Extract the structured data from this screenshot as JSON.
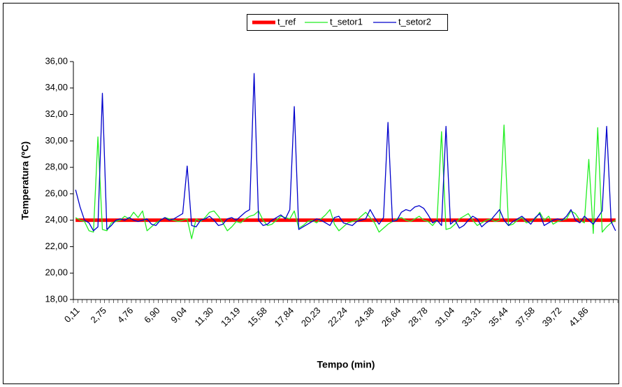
{
  "chart_data": {
    "type": "line",
    "y_label": "Temperatura (ºC)",
    "x_label": "Tempo (min)",
    "categories": [
      "0,11",
      null,
      null,
      null,
      null,
      null,
      "2,75",
      null,
      null,
      null,
      null,
      null,
      "4,76",
      null,
      null,
      null,
      null,
      null,
      "6,90",
      null,
      null,
      null,
      null,
      null,
      "9,04",
      null,
      null,
      null,
      null,
      null,
      "11,30",
      null,
      null,
      null,
      null,
      null,
      "13,19",
      null,
      null,
      null,
      null,
      null,
      "15,58",
      null,
      null,
      null,
      null,
      null,
      "17,84",
      null,
      null,
      null,
      null,
      null,
      "20,23",
      null,
      null,
      null,
      null,
      null,
      "22,24",
      null,
      null,
      null,
      null,
      null,
      "24,38",
      null,
      null,
      null,
      null,
      null,
      "26,64",
      null,
      null,
      null,
      null,
      null,
      "28,78",
      null,
      null,
      null,
      null,
      null,
      "31,04",
      null,
      null,
      null,
      null,
      null,
      "33,31",
      null,
      null,
      null,
      null,
      null,
      "35,44",
      null,
      null,
      null,
      null,
      null,
      "37,58",
      null,
      null,
      null,
      null,
      null,
      "39,72",
      null,
      null,
      null,
      null,
      null,
      "41,86",
      null,
      null,
      null,
      null,
      null,
      null,
      null
    ],
    "series": [
      {
        "name": "t_ref",
        "color": "#ff0000",
        "width": 5,
        "values": [
          24,
          24,
          24,
          24,
          24,
          24,
          24,
          24,
          24,
          24,
          24,
          24,
          24,
          24,
          24,
          24,
          24,
          24,
          24,
          24,
          24,
          24,
          24,
          24,
          24,
          24,
          24,
          24,
          24,
          24,
          24,
          24,
          24,
          24,
          24,
          24,
          24,
          24,
          24,
          24,
          24,
          24,
          24,
          24,
          24,
          24,
          24,
          24,
          24,
          24,
          24,
          24,
          24,
          24,
          24,
          24,
          24,
          24,
          24,
          24,
          24,
          24,
          24,
          24,
          24,
          24,
          24,
          24,
          24,
          24,
          24,
          24,
          24,
          24,
          24,
          24,
          24,
          24,
          24,
          24,
          24,
          24,
          24,
          24,
          24,
          24,
          24,
          24,
          24,
          24,
          24,
          24,
          24,
          24,
          24,
          24,
          24,
          24,
          24,
          24,
          24,
          24,
          24,
          24,
          24,
          24,
          24,
          24,
          24,
          24,
          24,
          24,
          24,
          24,
          24,
          24,
          24,
          24,
          24,
          24,
          24,
          24
        ]
      },
      {
        "name": "t_setor1",
        "color": "#22ee22",
        "width": 1.3,
        "values": [
          24.2,
          24.0,
          23.9,
          23.2,
          23.1,
          30.3,
          23.3,
          23.2,
          23.8,
          23.9,
          24.0,
          24.3,
          24.1,
          24.6,
          24.2,
          24.7,
          23.2,
          23.5,
          23.8,
          24.0,
          24.2,
          24.1,
          24.0,
          23.9,
          24.0,
          24.1,
          22.6,
          24.1,
          23.9,
          24.2,
          24.6,
          24.7,
          24.3,
          23.8,
          23.2,
          23.5,
          23.9,
          23.8,
          24.1,
          24.3,
          24.4,
          24.7,
          24.0,
          23.6,
          23.7,
          24.0,
          24.3,
          24.2,
          24.1,
          24.7,
          23.4,
          23.6,
          23.9,
          24.0,
          23.8,
          24.1,
          24.4,
          24.8,
          23.7,
          23.2,
          23.5,
          23.8,
          23.9,
          24.0,
          24.3,
          24.6,
          24.2,
          23.8,
          23.1,
          23.4,
          23.7,
          23.9,
          24.1,
          24.2,
          24.0,
          23.9,
          24.1,
          24.3,
          24.0,
          23.9,
          23.6,
          24.0,
          30.7,
          23.3,
          23.4,
          23.7,
          24.1,
          24.3,
          24.5,
          24.0,
          23.6,
          23.8,
          24.0,
          24.1,
          23.9,
          24.0,
          31.2,
          23.6,
          23.7,
          24.0,
          24.2,
          23.8,
          23.9,
          24.1,
          24.6,
          24.0,
          24.3,
          23.7,
          23.9,
          24.0,
          24.1,
          24.7,
          24.5,
          24.0,
          23.8,
          28.6,
          23.0,
          31.0,
          23.1,
          23.5,
          23.8,
          24.0
        ]
      },
      {
        "name": "t_setor2",
        "color": "#0000cc",
        "width": 1.3,
        "values": [
          26.3,
          25.0,
          24.0,
          23.8,
          23.2,
          23.5,
          33.6,
          23.3,
          23.6,
          24.0,
          24.1,
          24.0,
          24.2,
          24.0,
          23.9,
          24.0,
          24.1,
          23.7,
          23.6,
          24.0,
          24.2,
          24.0,
          24.1,
          24.3,
          24.5,
          28.1,
          23.6,
          23.5,
          24.0,
          24.1,
          24.3,
          24.0,
          23.6,
          23.7,
          24.1,
          24.2,
          24.0,
          24.3,
          24.6,
          24.8,
          35.1,
          24.0,
          23.6,
          23.7,
          24.0,
          24.2,
          24.4,
          24.1,
          24.8,
          32.6,
          23.3,
          23.5,
          23.7,
          23.9,
          24.1,
          24.0,
          23.8,
          23.6,
          24.2,
          24.3,
          23.8,
          23.7,
          23.6,
          23.9,
          24.0,
          24.1,
          24.8,
          24.2,
          23.7,
          24.2,
          31.4,
          23.9,
          24.0,
          24.6,
          24.8,
          24.7,
          25.0,
          25.1,
          24.9,
          24.4,
          23.8,
          24.0,
          23.6,
          31.1,
          23.7,
          24.0,
          23.4,
          23.6,
          24.0,
          24.3,
          24.1,
          23.5,
          23.8,
          24.0,
          24.4,
          24.8,
          24.0,
          23.6,
          23.9,
          24.1,
          24.3,
          24.0,
          23.7,
          24.2,
          24.5,
          23.6,
          23.8,
          24.0,
          24.1,
          24.0,
          24.3,
          24.8,
          24.0,
          23.8,
          24.3,
          24.0,
          23.7,
          24.2,
          24.7,
          31.1,
          23.9,
          23.2
        ]
      }
    ],
    "ylim": [
      18,
      36
    ],
    "yticks": [
      {
        "value": 18,
        "label": "18,00"
      },
      {
        "value": 20,
        "label": "20,00"
      },
      {
        "value": 22,
        "label": "22,00"
      },
      {
        "value": 24,
        "label": "24,00"
      },
      {
        "value": 26,
        "label": "26,00"
      },
      {
        "value": 28,
        "label": "28,00"
      },
      {
        "value": 30,
        "label": "30,00"
      },
      {
        "value": 32,
        "label": "32,00"
      },
      {
        "value": 34,
        "label": "34,00"
      },
      {
        "value": 36,
        "label": "36,00"
      }
    ],
    "grid": false,
    "legend": "top"
  }
}
